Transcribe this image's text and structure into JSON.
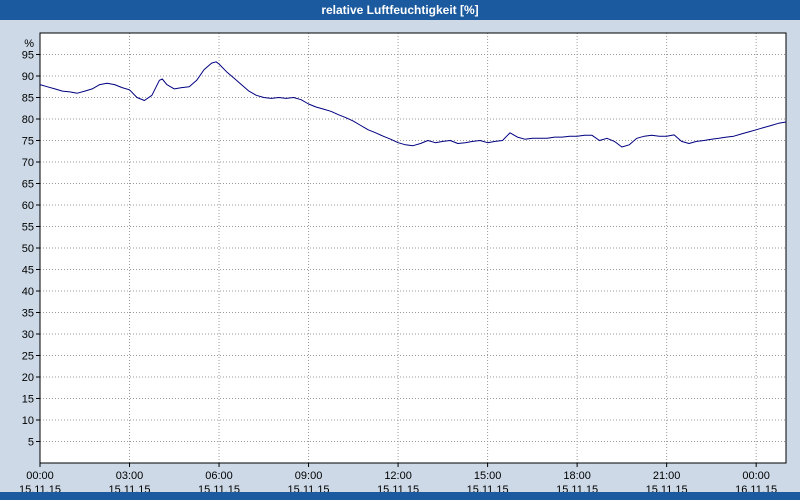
{
  "title": "relative Luftfeuchtigkeit [%]",
  "colors": {
    "titlebar_bg": "#1b5a9e",
    "page_bg": "#cdd9e6",
    "plot_bg": "#ffffff",
    "grid": "#999999",
    "axis": "#000000",
    "line": "#000080"
  },
  "chart_data": {
    "type": "line",
    "title": "relative Luftfeuchtigkeit [%]",
    "ylabel": "%",
    "ylim": [
      0,
      100
    ],
    "grid": "dotted",
    "legend": "none",
    "y_ticks": [
      5,
      10,
      15,
      20,
      25,
      30,
      35,
      40,
      45,
      50,
      55,
      60,
      65,
      70,
      75,
      80,
      85,
      90,
      95
    ],
    "x_hours_range": [
      0,
      25
    ],
    "x_ticks": [
      {
        "hour": 0,
        "time": "00:00",
        "date": "15.11.15"
      },
      {
        "hour": 3,
        "time": "03:00",
        "date": "15.11.15"
      },
      {
        "hour": 6,
        "time": "06:00",
        "date": "15.11.15"
      },
      {
        "hour": 9,
        "time": "09:00",
        "date": "15.11.15"
      },
      {
        "hour": 12,
        "time": "12:00",
        "date": "15.11.15"
      },
      {
        "hour": 15,
        "time": "15:00",
        "date": "15.11.15"
      },
      {
        "hour": 18,
        "time": "18:00",
        "date": "15.11.15"
      },
      {
        "hour": 21,
        "time": "21:00",
        "date": "15.11.15"
      },
      {
        "hour": 24,
        "time": "00:00",
        "date": "16.11.15"
      }
    ],
    "series": [
      {
        "name": "relative Luftfeuchtigkeit",
        "unit": "%",
        "color": "#000080",
        "points": [
          [
            0,
            88
          ],
          [
            0.25,
            87.5
          ],
          [
            0.5,
            87
          ],
          [
            0.75,
            86.5
          ],
          [
            1,
            86.3
          ],
          [
            1.25,
            86
          ],
          [
            1.5,
            86.5
          ],
          [
            1.75,
            87
          ],
          [
            2,
            88
          ],
          [
            2.25,
            88.3
          ],
          [
            2.5,
            88
          ],
          [
            2.75,
            87.3
          ],
          [
            3,
            86.8
          ],
          [
            3.25,
            85
          ],
          [
            3.5,
            84.3
          ],
          [
            3.75,
            85.5
          ],
          [
            4,
            89
          ],
          [
            4.1,
            89.3
          ],
          [
            4.25,
            88
          ],
          [
            4.5,
            87
          ],
          [
            4.75,
            87.3
          ],
          [
            5,
            87.5
          ],
          [
            5.25,
            89
          ],
          [
            5.5,
            91.5
          ],
          [
            5.75,
            93
          ],
          [
            5.9,
            93.3
          ],
          [
            6,
            92.8
          ],
          [
            6.25,
            91
          ],
          [
            6.5,
            89.5
          ],
          [
            6.75,
            88
          ],
          [
            7,
            86.5
          ],
          [
            7.25,
            85.5
          ],
          [
            7.5,
            85
          ],
          [
            7.75,
            84.8
          ],
          [
            8,
            85
          ],
          [
            8.25,
            84.8
          ],
          [
            8.5,
            85
          ],
          [
            8.75,
            84.5
          ],
          [
            9,
            83.5
          ],
          [
            9.25,
            82.8
          ],
          [
            9.5,
            82.3
          ],
          [
            9.75,
            81.8
          ],
          [
            10,
            81
          ],
          [
            10.25,
            80.3
          ],
          [
            10.5,
            79.5
          ],
          [
            10.75,
            78.5
          ],
          [
            11,
            77.5
          ],
          [
            11.25,
            76.8
          ],
          [
            11.5,
            76
          ],
          [
            11.75,
            75.3
          ],
          [
            12,
            74.5
          ],
          [
            12.25,
            74
          ],
          [
            12.5,
            73.8
          ],
          [
            12.75,
            74.3
          ],
          [
            13,
            75
          ],
          [
            13.25,
            74.5
          ],
          [
            13.5,
            74.8
          ],
          [
            13.75,
            75
          ],
          [
            14,
            74.3
          ],
          [
            14.25,
            74.5
          ],
          [
            14.5,
            74.8
          ],
          [
            14.75,
            75
          ],
          [
            15,
            74.5
          ],
          [
            15.25,
            74.8
          ],
          [
            15.5,
            75
          ],
          [
            15.75,
            76.8
          ],
          [
            16,
            75.8
          ],
          [
            16.25,
            75.3
          ],
          [
            16.5,
            75.5
          ],
          [
            16.75,
            75.5
          ],
          [
            17,
            75.5
          ],
          [
            17.25,
            75.8
          ],
          [
            17.5,
            75.8
          ],
          [
            17.75,
            76
          ],
          [
            18,
            76
          ],
          [
            18.25,
            76.2
          ],
          [
            18.5,
            76.2
          ],
          [
            18.75,
            75
          ],
          [
            19,
            75.5
          ],
          [
            19.25,
            74.8
          ],
          [
            19.5,
            73.5
          ],
          [
            19.75,
            74
          ],
          [
            20,
            75.5
          ],
          [
            20.25,
            76
          ],
          [
            20.5,
            76.2
          ],
          [
            20.75,
            76
          ],
          [
            21,
            76
          ],
          [
            21.25,
            76.3
          ],
          [
            21.5,
            74.8
          ],
          [
            21.75,
            74.3
          ],
          [
            22,
            74.8
          ],
          [
            22.25,
            75
          ],
          [
            22.5,
            75.3
          ],
          [
            22.75,
            75.5
          ],
          [
            23,
            75.8
          ],
          [
            23.25,
            76
          ],
          [
            23.5,
            76.5
          ],
          [
            23.75,
            77
          ],
          [
            24,
            77.5
          ],
          [
            24.25,
            78
          ],
          [
            24.5,
            78.5
          ],
          [
            24.75,
            79
          ],
          [
            25,
            79.3
          ]
        ]
      }
    ]
  }
}
